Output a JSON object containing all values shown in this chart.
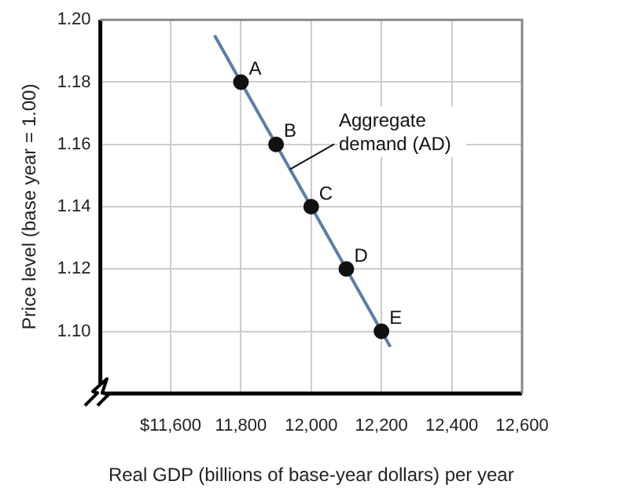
{
  "chart_data": {
    "type": "scatter",
    "xlabel": "Real GDP (billions of base-year dollars) per year",
    "ylabel": "Price level (base year = 1.00)",
    "xlim": [
      11400,
      12600
    ],
    "xticks": [
      {
        "value": 11600,
        "label": "$11,600"
      },
      {
        "value": 11800,
        "label": "11,800"
      },
      {
        "value": 12000,
        "label": "12,000"
      },
      {
        "value": 12200,
        "label": "12,200"
      },
      {
        "value": 12400,
        "label": "12,400"
      },
      {
        "value": 12600,
        "label": "12,600"
      }
    ],
    "ylim": [
      1.08,
      1.2
    ],
    "yticks": [
      {
        "value": 1.1,
        "label": "1.10"
      },
      {
        "value": 1.12,
        "label": "1.12"
      },
      {
        "value": 1.14,
        "label": "1.14"
      },
      {
        "value": 1.16,
        "label": "1.16"
      },
      {
        "value": 1.18,
        "label": "1.18"
      },
      {
        "value": 1.2,
        "label": "1.20"
      }
    ],
    "grid": true,
    "legend": false,
    "marker": "circle",
    "series": [
      {
        "name": "Aggregate demand (AD)",
        "type": "line",
        "color": "#5b7fa6",
        "marker": "none",
        "x": [
          11725,
          12225
        ],
        "values": [
          1.195,
          1.095
        ]
      },
      {
        "type": "scatter",
        "color": "#111111",
        "x": [
          11800,
          11900,
          12000,
          12100,
          12200
        ],
        "values": [
          1.18,
          1.16,
          1.14,
          1.12,
          1.1
        ]
      }
    ],
    "annotations": [
      {
        "text": "A",
        "x": 11800,
        "y": 1.18
      },
      {
        "text": "B",
        "x": 11900,
        "y": 1.16
      },
      {
        "text": "C",
        "x": 12000,
        "y": 1.14
      },
      {
        "text": "D",
        "x": 12100,
        "y": 1.12
      },
      {
        "text": "E",
        "x": 12200,
        "y": 1.1
      }
    ]
  }
}
